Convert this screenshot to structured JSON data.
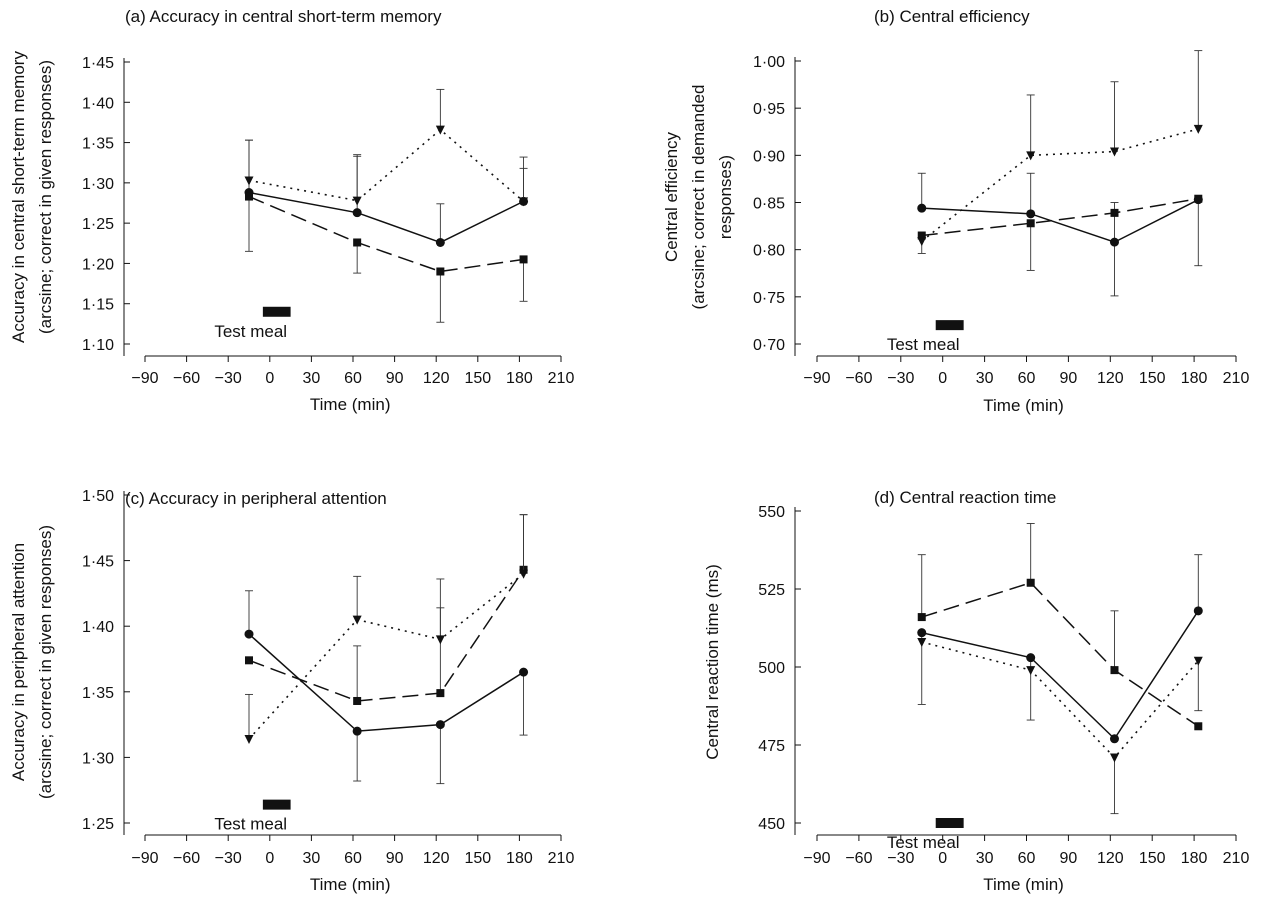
{
  "figure": {
    "panel_titles": [
      "(a) Accuracy in central short-term memory",
      "(b) Central efficiency",
      "(c) Accuracy in peripheral attention",
      "(d) Central reaction time"
    ]
  },
  "chart_data": [
    {
      "type": "line",
      "title": "(a) Accuracy in central short-term memory",
      "xlabel": "Time (min)",
      "ylabel_lines": [
        "Accuracy in central short-term memory",
        "(arcsine; correct in given responses)"
      ],
      "xlim": [
        -90,
        210
      ],
      "xticks": [
        -90,
        -60,
        -30,
        0,
        30,
        60,
        90,
        120,
        150,
        180,
        210
      ],
      "xtick_labels": [
        "−90",
        "−60",
        "−30",
        "0",
        "30",
        "60",
        "90",
        "120",
        "150",
        "180",
        "210"
      ],
      "ylim": [
        1.1,
        1.45
      ],
      "yticks": [
        1.1,
        1.15,
        1.2,
        1.25,
        1.3,
        1.35,
        1.4,
        1.45
      ],
      "ytick_labels": [
        "1·10",
        "1·15",
        "1·20",
        "1·25",
        "1·30",
        "1·35",
        "1·40",
        "1·45"
      ],
      "annotation": {
        "label": "Test meal",
        "bar_x": [
          -5,
          15
        ],
        "bar_y": 1.14
      },
      "x": [
        -15,
        63,
        123,
        183
      ],
      "series": [
        {
          "marker": "circle",
          "dash": "solid",
          "values": [
            1.288,
            1.263,
            1.226,
            1.277
          ],
          "err_up": [
            0.065,
            0.072,
            0.048,
            0.055
          ],
          "err_down": [
            0.0,
            0.0,
            0.0,
            0.0
          ]
        },
        {
          "marker": "square",
          "dash": "dashed",
          "values": [
            1.283,
            1.226,
            1.19,
            1.205
          ],
          "err_up": [
            0.0,
            0.0,
            0.0,
            0.0
          ],
          "err_down": [
            0.068,
            0.038,
            0.063,
            0.052
          ]
        },
        {
          "marker": "triangle-down",
          "dash": "dotted",
          "values": [
            1.303,
            1.278,
            1.366,
            1.277
          ],
          "err_up": [
            0.05,
            0.055,
            0.05,
            0.041
          ],
          "err_down": [
            0.0,
            0.0,
            0.0,
            0.0
          ]
        }
      ]
    },
    {
      "type": "line",
      "title": "(b) Central efficiency",
      "xlabel": "Time (min)",
      "ylabel_lines": [
        "Central efficiency",
        "(arcsine; correct in demanded",
        "responses)"
      ],
      "xlim": [
        -90,
        210
      ],
      "xticks": [
        -90,
        -60,
        -30,
        0,
        30,
        60,
        90,
        120,
        150,
        180,
        210
      ],
      "xtick_labels": [
        "−90",
        "−60",
        "−30",
        "0",
        "30",
        "60",
        "90",
        "120",
        "150",
        "180",
        "210"
      ],
      "ylim": [
        0.7,
        1.0
      ],
      "yticks": [
        0.7,
        0.75,
        0.8,
        0.85,
        0.9,
        0.95,
        1.0
      ],
      "ytick_labels": [
        "0·70",
        "0·75",
        "0·80",
        "0·85",
        "0·90",
        "0·95",
        "1·00"
      ],
      "annotation": {
        "label": "Test meal",
        "bar_x": [
          -5,
          15
        ],
        "bar_y": 0.72
      },
      "x": [
        -15,
        63,
        123,
        183
      ],
      "series": [
        {
          "marker": "circle",
          "dash": "solid",
          "values": [
            0.844,
            0.838,
            0.808,
            0.853
          ],
          "err_up": [
            0.037,
            0.043,
            0.042,
            0.0
          ],
          "err_down": [
            0.0,
            0.0,
            0.057,
            0.07
          ]
        },
        {
          "marker": "square",
          "dash": "dashed",
          "values": [
            0.815,
            0.828,
            0.839,
            0.854
          ],
          "err_up": [
            0.0,
            0.0,
            0.0,
            0.0
          ],
          "err_down": [
            0.0,
            0.05,
            0.0,
            0.0
          ]
        },
        {
          "marker": "triangle-down",
          "dash": "dotted",
          "values": [
            0.809,
            0.9,
            0.904,
            0.928
          ],
          "err_up": [
            0.0,
            0.064,
            0.074,
            0.083
          ],
          "err_down": [
            0.013,
            0.0,
            0.0,
            0.0
          ]
        }
      ]
    },
    {
      "type": "line",
      "title": "(c) Accuracy in peripheral attention",
      "xlabel": "Time (min)",
      "ylabel_lines": [
        "Accuracy in peripheral attention",
        "(arcsine; correct in given responses)"
      ],
      "xlim": [
        -90,
        210
      ],
      "xticks": [
        -90,
        -60,
        -30,
        0,
        30,
        60,
        90,
        120,
        150,
        180,
        210
      ],
      "xtick_labels": [
        "−90",
        "−60",
        "−30",
        "0",
        "30",
        "60",
        "90",
        "120",
        "150",
        "180",
        "210"
      ],
      "ylim": [
        1.22,
        1.5
      ],
      "yticks": [
        1.25,
        1.3,
        1.35,
        1.4,
        1.45,
        1.5
      ],
      "ytick_labels": [
        "1·25",
        "1·30",
        "1·35",
        "1·40",
        "1·45",
        "1·50"
      ],
      "annotation": {
        "label": "Test meal",
        "bar_x": [
          -5,
          15
        ],
        "bar_y": 1.264
      },
      "x": [
        -15,
        63,
        123,
        183
      ],
      "series": [
        {
          "marker": "circle",
          "dash": "solid",
          "values": [
            1.394,
            1.32,
            1.325,
            1.365
          ],
          "err_up": [
            0.033,
            0.0,
            0.0,
            0.0
          ],
          "err_down": [
            0.0,
            0.038,
            0.045,
            0.048
          ]
        },
        {
          "marker": "square",
          "dash": "dashed",
          "values": [
            1.374,
            1.343,
            1.349,
            1.443
          ],
          "err_up": [
            0.0,
            0.042,
            0.065,
            0.042
          ],
          "err_down": [
            0.0,
            0.0,
            0.0,
            0.0
          ]
        },
        {
          "marker": "triangle-down",
          "dash": "dotted",
          "values": [
            1.314,
            1.405,
            1.39,
            1.44
          ],
          "err_up": [
            0.034,
            0.033,
            0.046,
            0.045
          ],
          "err_down": [
            0.0,
            0.0,
            0.0,
            0.0
          ]
        }
      ]
    },
    {
      "type": "line",
      "title": "(d) Central reaction time",
      "xlabel": "Time (min)",
      "ylabel_lines": [
        "Central reaction time (ms)"
      ],
      "xlim": [
        -90,
        210
      ],
      "xticks": [
        -90,
        -60,
        -30,
        0,
        30,
        60,
        90,
        120,
        150,
        180,
        210
      ],
      "xtick_labels": [
        "−90",
        "−60",
        "−30",
        "0",
        "30",
        "60",
        "90",
        "120",
        "150",
        "180",
        "210"
      ],
      "ylim": [
        440,
        550
      ],
      "yticks": [
        450,
        475,
        500,
        525,
        550
      ],
      "ytick_labels": [
        "450",
        "475",
        "500",
        "525",
        "550"
      ],
      "annotation": {
        "label": "Test meal",
        "bar_x": [
          -5,
          15
        ],
        "bar_y": 450
      },
      "x": [
        -15,
        63,
        123,
        183
      ],
      "series": [
        {
          "marker": "circle",
          "dash": "solid",
          "values": [
            511,
            503,
            477,
            518
          ],
          "err_up": [
            0.0,
            0.0,
            0.0,
            18
          ],
          "err_down": [
            23,
            20,
            0.0,
            0.0
          ]
        },
        {
          "marker": "square",
          "dash": "dashed",
          "values": [
            516,
            527,
            499,
            481
          ],
          "err_up": [
            20,
            19,
            19,
            0.0
          ],
          "err_down": [
            0.0,
            0.0,
            0.0,
            0.0
          ]
        },
        {
          "marker": "triangle-down",
          "dash": "dotted",
          "values": [
            508,
            499,
            471,
            502
          ],
          "err_up": [
            0.0,
            0.0,
            0.0,
            0.0
          ],
          "err_down": [
            0.0,
            0.0,
            18,
            16
          ]
        }
      ]
    }
  ]
}
